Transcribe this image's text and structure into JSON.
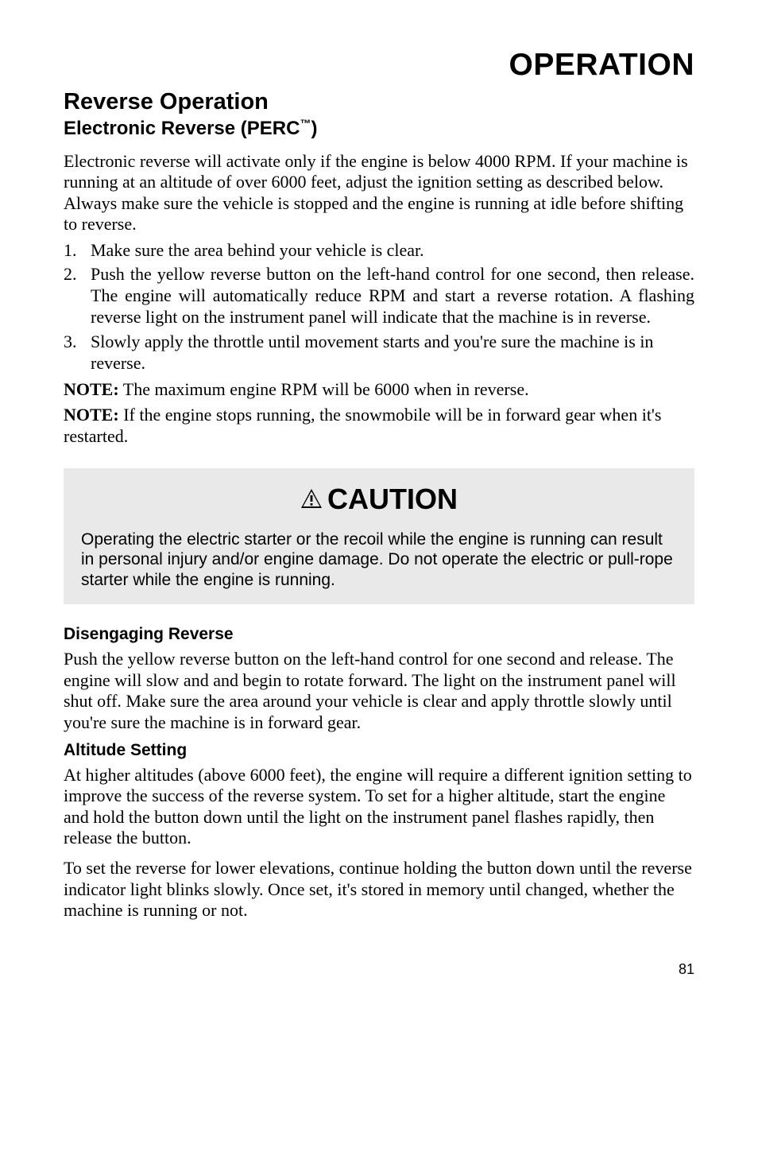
{
  "section_title": "OPERATION",
  "heading_1": "Reverse Operation",
  "heading_2_prefix": "Electronic Reverse (PERC",
  "heading_2_tm": "™",
  "heading_2_suffix": ")",
  "intro": "Electronic reverse will activate only if the engine is below 4000 RPM. If your machine is running at an altitude of over 6000 feet, adjust the ignition setting as described below.  Always make sure the vehicle is stopped and the engine is running at idle before shifting to reverse.",
  "steps": [
    {
      "num": "1.",
      "text": "Make sure the area behind your vehicle is clear.",
      "justify": false
    },
    {
      "num": "2.",
      "text": "Push the yellow reverse button on the left-hand control for one second, then release.  The engine will automatically reduce RPM and start a reverse rotation.  A flashing reverse light on the instrument panel will indicate that the machine is in reverse.",
      "justify": true
    },
    {
      "num": "3.",
      "text": "Slowly apply the throttle until movement starts and you're sure the machine is in reverse.",
      "justify": false
    }
  ],
  "note1_label": "NOTE:",
  "note1_text": "  The maximum engine RPM will be 6000 when in reverse.",
  "note2_label": "NOTE:",
  "note2_text": "  If the engine stops running, the snowmobile will be in forward gear when it's restarted.",
  "caution_title": "CAUTION",
  "caution_body": "Operating the electric starter or the recoil while the engine is running can result in personal injury and/or engine damage. Do not operate the electric or pull-rope starter while the engine is running.",
  "disengage_heading": "Disengaging Reverse",
  "disengage_body": "Push the yellow reverse button on the left-hand control for one second and release.  The engine will slow and and begin to rotate forward.  The light on the instrument panel will shut off.  Make sure the area around your vehicle is clear and apply throttle slowly until you're sure the machine is in forward gear.",
  "altitude_heading": "Altitude Setting",
  "altitude_body_1": "At higher altitudes (above 6000 feet), the engine will require a different ignition setting to improve the success of the reverse system.  To set for a higher altitude, start the engine and hold the button down until the light on the instrument panel flashes rapidly, then release the button.",
  "altitude_body_2": "To set the reverse for lower elevations, continue holding the button down until the reverse indicator light blinks slowly.  Once set, it's stored in memory until changed, whether the machine is running or not.",
  "page_number": "81",
  "colors": {
    "background": "#ffffff",
    "text": "#000000",
    "caution_bg": "#e9e9e9"
  }
}
